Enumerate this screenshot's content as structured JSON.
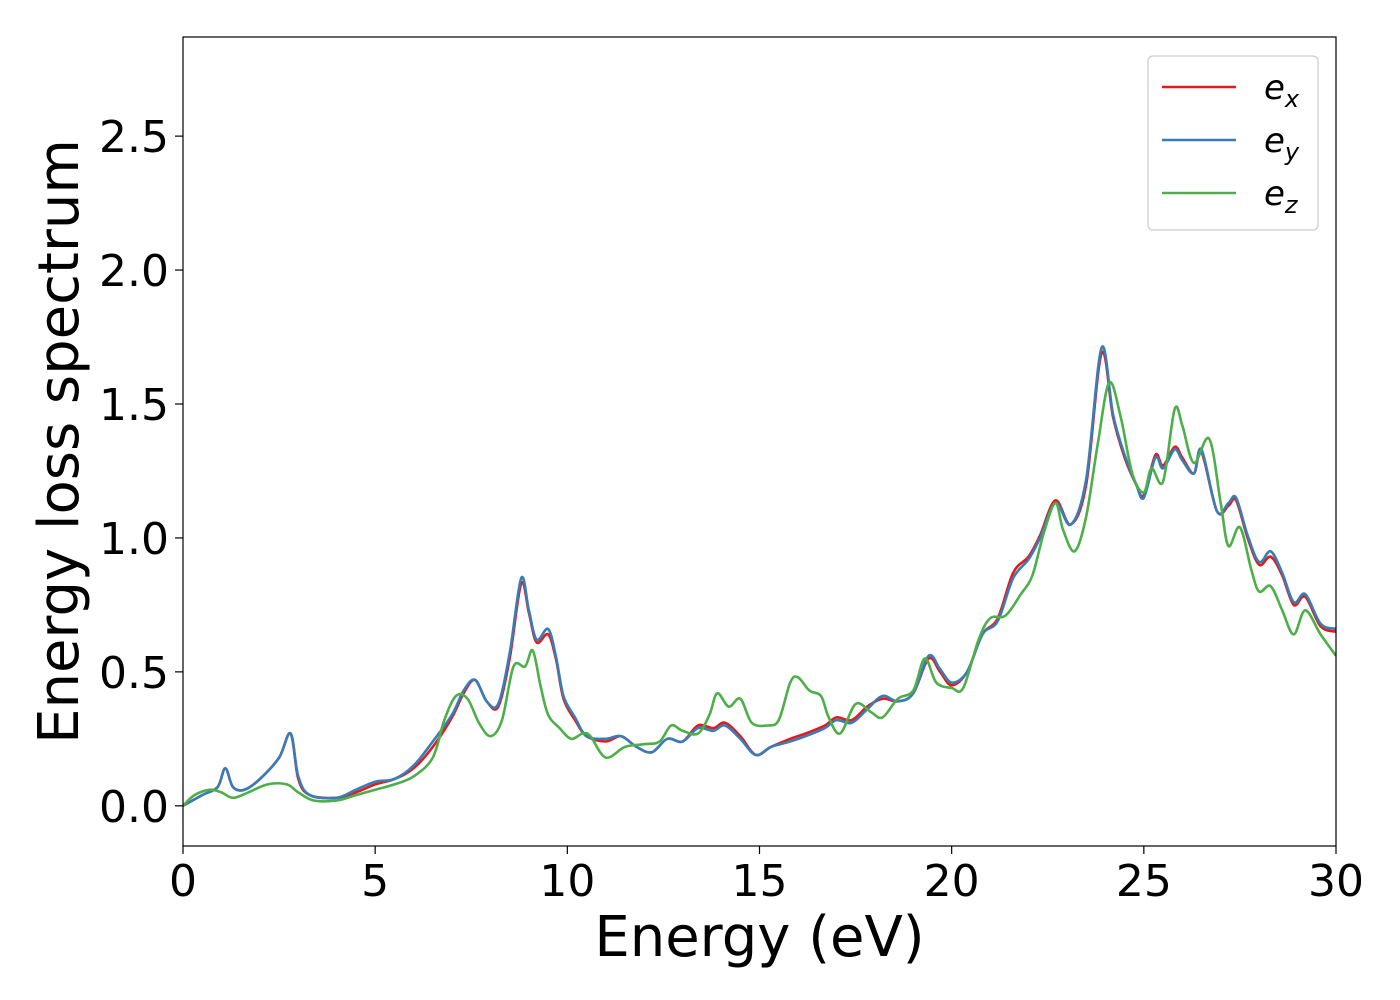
{
  "chart_data": {
    "type": "line",
    "xlabel": "Energy (eV)",
    "ylabel": "Energy loss spectrum",
    "xlim": [
      0,
      30
    ],
    "ylim": [
      -0.15,
      2.87
    ],
    "xticks": [
      0,
      5,
      10,
      15,
      20,
      25,
      30
    ],
    "xtick_labels": [
      "0",
      "5",
      "10",
      "15",
      "20",
      "25",
      "30"
    ],
    "yticks": [
      0.0,
      0.5,
      1.0,
      1.5,
      2.0,
      2.5
    ],
    "ytick_labels": [
      "0.0",
      "0.5",
      "1.0",
      "1.5",
      "2.0",
      "2.5"
    ],
    "grid": false,
    "legend_position": "top-right",
    "series": [
      {
        "name": "e_x",
        "label_main": "e",
        "label_sub": "x",
        "color": "#e41a1c",
        "points": [
          [
            0,
            0.0
          ],
          [
            0.5,
            0.04
          ],
          [
            0.9,
            0.07
          ],
          [
            1.1,
            0.14
          ],
          [
            1.3,
            0.07
          ],
          [
            1.6,
            0.06
          ],
          [
            2.0,
            0.1
          ],
          [
            2.5,
            0.18
          ],
          [
            2.8,
            0.27
          ],
          [
            3.0,
            0.1
          ],
          [
            3.3,
            0.04
          ],
          [
            4.0,
            0.03
          ],
          [
            4.5,
            0.05
          ],
          [
            5.0,
            0.08
          ],
          [
            5.5,
            0.1
          ],
          [
            6.0,
            0.14
          ],
          [
            6.5,
            0.22
          ],
          [
            7.0,
            0.33
          ],
          [
            7.3,
            0.42
          ],
          [
            7.6,
            0.47
          ],
          [
            7.9,
            0.39
          ],
          [
            8.2,
            0.37
          ],
          [
            8.5,
            0.55
          ],
          [
            8.8,
            0.83
          ],
          [
            9.0,
            0.72
          ],
          [
            9.2,
            0.61
          ],
          [
            9.5,
            0.64
          ],
          [
            9.7,
            0.55
          ],
          [
            9.9,
            0.4
          ],
          [
            10.2,
            0.32
          ],
          [
            10.5,
            0.26
          ],
          [
            11.0,
            0.24
          ],
          [
            11.4,
            0.26
          ],
          [
            11.8,
            0.22
          ],
          [
            12.2,
            0.2
          ],
          [
            12.6,
            0.25
          ],
          [
            13.0,
            0.24
          ],
          [
            13.4,
            0.3
          ],
          [
            13.8,
            0.29
          ],
          [
            14.1,
            0.31
          ],
          [
            14.5,
            0.26
          ],
          [
            14.9,
            0.19
          ],
          [
            15.3,
            0.22
          ],
          [
            15.8,
            0.25
          ],
          [
            16.2,
            0.27
          ],
          [
            16.7,
            0.3
          ],
          [
            17.0,
            0.33
          ],
          [
            17.4,
            0.32
          ],
          [
            17.8,
            0.37
          ],
          [
            18.2,
            0.4
          ],
          [
            18.6,
            0.39
          ],
          [
            19.0,
            0.42
          ],
          [
            19.4,
            0.55
          ],
          [
            19.7,
            0.5
          ],
          [
            20.0,
            0.45
          ],
          [
            20.4,
            0.5
          ],
          [
            20.8,
            0.64
          ],
          [
            21.2,
            0.7
          ],
          [
            21.6,
            0.87
          ],
          [
            22.0,
            0.93
          ],
          [
            22.3,
            1.01
          ],
          [
            22.7,
            1.14
          ],
          [
            23.1,
            1.05
          ],
          [
            23.5,
            1.2
          ],
          [
            23.9,
            1.69
          ],
          [
            24.2,
            1.45
          ],
          [
            24.5,
            1.3
          ],
          [
            24.8,
            1.2
          ],
          [
            25.0,
            1.16
          ],
          [
            25.3,
            1.31
          ],
          [
            25.5,
            1.27
          ],
          [
            25.8,
            1.34
          ],
          [
            26.0,
            1.3
          ],
          [
            26.3,
            1.24
          ],
          [
            26.5,
            1.32
          ],
          [
            26.9,
            1.1
          ],
          [
            27.2,
            1.12
          ],
          [
            27.4,
            1.14
          ],
          [
            27.7,
            1.0
          ],
          [
            28.0,
            0.9
          ],
          [
            28.3,
            0.93
          ],
          [
            28.6,
            0.86
          ],
          [
            28.9,
            0.75
          ],
          [
            29.2,
            0.78
          ],
          [
            29.6,
            0.67
          ],
          [
            30.0,
            0.65
          ]
        ]
      },
      {
        "name": "e_y",
        "label_main": "e",
        "label_sub": "y",
        "color": "#377eb8",
        "points": [
          [
            0,
            0.0
          ],
          [
            0.5,
            0.04
          ],
          [
            0.9,
            0.07
          ],
          [
            1.1,
            0.14
          ],
          [
            1.3,
            0.07
          ],
          [
            1.6,
            0.06
          ],
          [
            2.0,
            0.1
          ],
          [
            2.5,
            0.18
          ],
          [
            2.8,
            0.27
          ],
          [
            3.0,
            0.11
          ],
          [
            3.3,
            0.04
          ],
          [
            4.0,
            0.03
          ],
          [
            4.5,
            0.06
          ],
          [
            5.0,
            0.09
          ],
          [
            5.5,
            0.1
          ],
          [
            6.0,
            0.15
          ],
          [
            6.5,
            0.24
          ],
          [
            7.0,
            0.34
          ],
          [
            7.3,
            0.43
          ],
          [
            7.6,
            0.47
          ],
          [
            7.9,
            0.39
          ],
          [
            8.2,
            0.38
          ],
          [
            8.5,
            0.57
          ],
          [
            8.8,
            0.85
          ],
          [
            9.0,
            0.73
          ],
          [
            9.2,
            0.62
          ],
          [
            9.5,
            0.66
          ],
          [
            9.7,
            0.56
          ],
          [
            9.9,
            0.41
          ],
          [
            10.2,
            0.33
          ],
          [
            10.5,
            0.26
          ],
          [
            11.0,
            0.25
          ],
          [
            11.4,
            0.26
          ],
          [
            11.8,
            0.22
          ],
          [
            12.2,
            0.2
          ],
          [
            12.6,
            0.25
          ],
          [
            13.0,
            0.24
          ],
          [
            13.4,
            0.29
          ],
          [
            13.8,
            0.28
          ],
          [
            14.1,
            0.3
          ],
          [
            14.5,
            0.25
          ],
          [
            14.9,
            0.19
          ],
          [
            15.3,
            0.22
          ],
          [
            15.8,
            0.24
          ],
          [
            16.2,
            0.26
          ],
          [
            16.7,
            0.29
          ],
          [
            17.0,
            0.32
          ],
          [
            17.4,
            0.31
          ],
          [
            17.8,
            0.36
          ],
          [
            18.2,
            0.41
          ],
          [
            18.6,
            0.39
          ],
          [
            19.0,
            0.42
          ],
          [
            19.4,
            0.56
          ],
          [
            19.7,
            0.51
          ],
          [
            20.0,
            0.46
          ],
          [
            20.4,
            0.5
          ],
          [
            20.8,
            0.64
          ],
          [
            21.2,
            0.69
          ],
          [
            21.6,
            0.85
          ],
          [
            22.0,
            0.92
          ],
          [
            22.3,
            1.0
          ],
          [
            22.7,
            1.13
          ],
          [
            23.1,
            1.05
          ],
          [
            23.5,
            1.22
          ],
          [
            23.9,
            1.71
          ],
          [
            24.2,
            1.46
          ],
          [
            24.5,
            1.31
          ],
          [
            24.8,
            1.2
          ],
          [
            25.0,
            1.15
          ],
          [
            25.3,
            1.3
          ],
          [
            25.5,
            1.26
          ],
          [
            25.8,
            1.33
          ],
          [
            26.0,
            1.29
          ],
          [
            26.3,
            1.24
          ],
          [
            26.5,
            1.33
          ],
          [
            26.9,
            1.1
          ],
          [
            27.2,
            1.13
          ],
          [
            27.4,
            1.15
          ],
          [
            27.7,
            1.01
          ],
          [
            28.0,
            0.91
          ],
          [
            28.3,
            0.95
          ],
          [
            28.6,
            0.87
          ],
          [
            28.9,
            0.76
          ],
          [
            29.2,
            0.79
          ],
          [
            29.6,
            0.68
          ],
          [
            30.0,
            0.66
          ]
        ]
      },
      {
        "name": "e_z",
        "label_main": "e",
        "label_sub": "z",
        "color": "#4daf4a",
        "points": [
          [
            0,
            0.0
          ],
          [
            0.3,
            0.04
          ],
          [
            0.7,
            0.06
          ],
          [
            1.0,
            0.05
          ],
          [
            1.3,
            0.03
          ],
          [
            1.7,
            0.05
          ],
          [
            2.2,
            0.08
          ],
          [
            2.7,
            0.08
          ],
          [
            3.0,
            0.05
          ],
          [
            3.4,
            0.02
          ],
          [
            4.0,
            0.02
          ],
          [
            4.5,
            0.04
          ],
          [
            5.0,
            0.06
          ],
          [
            5.5,
            0.08
          ],
          [
            6.0,
            0.11
          ],
          [
            6.5,
            0.18
          ],
          [
            6.8,
            0.32
          ],
          [
            7.1,
            0.41
          ],
          [
            7.4,
            0.4
          ],
          [
            7.7,
            0.31
          ],
          [
            8.0,
            0.26
          ],
          [
            8.3,
            0.32
          ],
          [
            8.6,
            0.52
          ],
          [
            8.9,
            0.52
          ],
          [
            9.1,
            0.58
          ],
          [
            9.3,
            0.45
          ],
          [
            9.5,
            0.34
          ],
          [
            9.8,
            0.29
          ],
          [
            10.1,
            0.25
          ],
          [
            10.4,
            0.27
          ],
          [
            10.6,
            0.26
          ],
          [
            11.0,
            0.18
          ],
          [
            11.5,
            0.22
          ],
          [
            12.0,
            0.23
          ],
          [
            12.4,
            0.24
          ],
          [
            12.7,
            0.3
          ],
          [
            13.0,
            0.28
          ],
          [
            13.4,
            0.27
          ],
          [
            13.7,
            0.34
          ],
          [
            13.9,
            0.42
          ],
          [
            14.2,
            0.37
          ],
          [
            14.5,
            0.4
          ],
          [
            14.8,
            0.31
          ],
          [
            15.2,
            0.3
          ],
          [
            15.5,
            0.32
          ],
          [
            15.8,
            0.46
          ],
          [
            16.0,
            0.48
          ],
          [
            16.3,
            0.43
          ],
          [
            16.6,
            0.41
          ],
          [
            16.8,
            0.33
          ],
          [
            17.1,
            0.27
          ],
          [
            17.5,
            0.38
          ],
          [
            17.9,
            0.35
          ],
          [
            18.2,
            0.33
          ],
          [
            18.6,
            0.4
          ],
          [
            19.0,
            0.43
          ],
          [
            19.3,
            0.55
          ],
          [
            19.6,
            0.46
          ],
          [
            20.0,
            0.44
          ],
          [
            20.3,
            0.44
          ],
          [
            20.7,
            0.62
          ],
          [
            21.0,
            0.7
          ],
          [
            21.4,
            0.71
          ],
          [
            21.8,
            0.79
          ],
          [
            22.1,
            0.86
          ],
          [
            22.4,
            1.02
          ],
          [
            22.7,
            1.13
          ],
          [
            22.9,
            1.03
          ],
          [
            23.2,
            0.95
          ],
          [
            23.5,
            1.08
          ],
          [
            23.8,
            1.35
          ],
          [
            24.1,
            1.58
          ],
          [
            24.4,
            1.45
          ],
          [
            24.7,
            1.24
          ],
          [
            25.0,
            1.17
          ],
          [
            25.2,
            1.26
          ],
          [
            25.5,
            1.21
          ],
          [
            25.8,
            1.48
          ],
          [
            26.0,
            1.42
          ],
          [
            26.3,
            1.28
          ],
          [
            26.7,
            1.37
          ],
          [
            27.0,
            1.13
          ],
          [
            27.2,
            0.97
          ],
          [
            27.5,
            1.04
          ],
          [
            27.8,
            0.88
          ],
          [
            28.0,
            0.8
          ],
          [
            28.3,
            0.82
          ],
          [
            28.6,
            0.73
          ],
          [
            28.9,
            0.64
          ],
          [
            29.2,
            0.73
          ],
          [
            29.6,
            0.64
          ],
          [
            30.0,
            0.56
          ]
        ]
      }
    ]
  }
}
